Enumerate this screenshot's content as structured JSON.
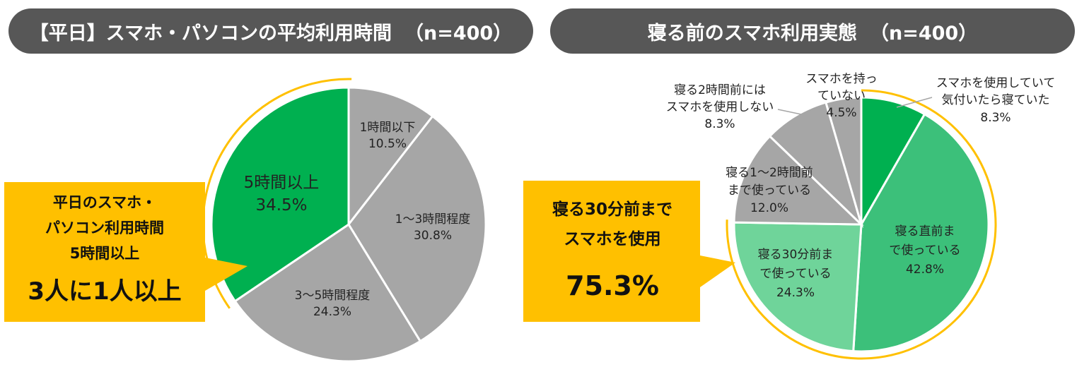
{
  "charts_title": {
    "left": "【平日】スマホ・パソコンの平均利用時間",
    "left_n": "（n=400）",
    "right": "寝る前のスマホ利用実態",
    "right_n": "（n=400）"
  },
  "callouts": {
    "left": {
      "lines": [
        "平日のスマホ・",
        "パソコン利用時間",
        "5時間以上"
      ],
      "emphasis": "3人に1人以上"
    },
    "right": {
      "lines": [
        "寝る30分前まで",
        "スマホを使用"
      ],
      "emphasis": "75.3%"
    }
  },
  "colors": {
    "green_dark": "#00b050",
    "green_mid": "#3cc07a",
    "green_light": "#6fd49a",
    "gray": "#a6a6a6",
    "callout": "#ffc000",
    "title_bg": "#575757"
  },
  "chart_data": [
    {
      "type": "pie",
      "title": "【平日】スマホ・パソコンの平均利用時間 （n=400）",
      "slices": [
        {
          "label": "1時間以下",
          "value": 10.5,
          "display": "10.5%"
        },
        {
          "label": "1～3時間程度",
          "value": 30.8,
          "display": "30.8%"
        },
        {
          "label": "3～5時間程度",
          "value": 24.3,
          "display": "24.3%"
        },
        {
          "label": "5時間以上",
          "value": 34.5,
          "display": "34.5%"
        }
      ]
    },
    {
      "type": "pie",
      "title": "寝る前のスマホ利用実態 （n=400）",
      "slices": [
        {
          "label": "スマホを使用していて気付いたら寝ていた",
          "value": 8.3,
          "display": "8.3%"
        },
        {
          "label": "寝る直前まで使っている",
          "value": 42.8,
          "display": "42.8%"
        },
        {
          "label": "寝る30分前まで使っている",
          "value": 24.3,
          "display": "24.3%"
        },
        {
          "label": "寝る1～2時間前まで使っている",
          "value": 12.0,
          "display": "12.0%"
        },
        {
          "label": "寝る2時間前にはスマホを使用しない",
          "value": 8.3,
          "display": "8.3%"
        },
        {
          "label": "スマホを持っていない",
          "value": 4.5,
          "display": "4.5%"
        }
      ]
    }
  ]
}
